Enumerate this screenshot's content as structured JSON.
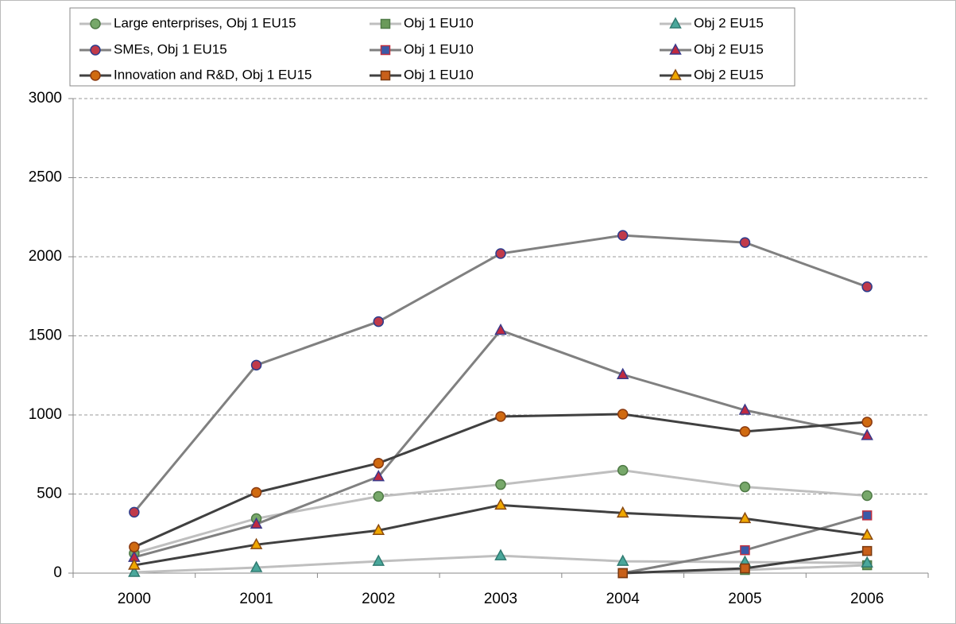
{
  "chart_data": {
    "type": "line",
    "categories": [
      "2000",
      "2001",
      "2002",
      "2003",
      "2004",
      "2005",
      "2006"
    ],
    "ylim": [
      0,
      3000
    ],
    "yticks": [
      0,
      500,
      1000,
      1500,
      2000,
      2500,
      3000
    ],
    "grid": true,
    "series": [
      {
        "name": "Large enterprises, Obj 1 EU15",
        "color": "#bfbfbf",
        "marker": "circle",
        "marker_fill": "#77a86a",
        "marker_edge": "#4f7a46",
        "values": [
          125,
          345,
          485,
          560,
          650,
          545,
          490
        ]
      },
      {
        "name": "Obj 1 EU10",
        "color": "#bfbfbf",
        "marker": "square",
        "marker_fill": "#6a9a5a",
        "marker_edge": "#4f7a46",
        "values": [
          null,
          null,
          null,
          null,
          0,
          20,
          50
        ]
      },
      {
        "name": "Obj 2 EU15",
        "color": "#bfbfbf",
        "marker": "triangle",
        "marker_fill": "#4aa79b",
        "marker_edge": "#2f7a70",
        "values": [
          5,
          35,
          75,
          110,
          75,
          70,
          65
        ]
      },
      {
        "name": "SMEs, Obj 1 EU15",
        "color": "#808080",
        "marker": "circle",
        "marker_fill": "#c03a4a",
        "marker_edge": "#2c3c8c",
        "values": [
          385,
          1315,
          1590,
          2020,
          2135,
          2090,
          1810
        ]
      },
      {
        "name": "Obj 1 EU10",
        "color": "#808080",
        "marker": "square",
        "marker_fill": "#3a5aa8",
        "marker_edge": "#c03040",
        "values": [
          null,
          null,
          null,
          null,
          0,
          145,
          365
        ]
      },
      {
        "name": "Obj 2 EU15",
        "color": "#808080",
        "marker": "triangle",
        "marker_fill": "#c02a40",
        "marker_edge": "#3a3a8a",
        "values": [
          100,
          310,
          610,
          1535,
          1255,
          1030,
          870
        ]
      },
      {
        "name": "Innovation and R&D, Obj 1 EU15",
        "color": "#404040",
        "marker": "circle",
        "marker_fill": "#d06a10",
        "marker_edge": "#8a3a10",
        "values": [
          165,
          510,
          695,
          990,
          1005,
          895,
          955
        ]
      },
      {
        "name": "Obj 1 EU10",
        "color": "#404040",
        "marker": "square",
        "marker_fill": "#c8601a",
        "marker_edge": "#7a3a10",
        "values": [
          null,
          null,
          null,
          null,
          0,
          30,
          140
        ]
      },
      {
        "name": "Obj 2 EU15",
        "color": "#404040",
        "marker": "triangle",
        "marker_fill": "#f0a800",
        "marker_edge": "#8a4a10",
        "values": [
          50,
          180,
          270,
          430,
          380,
          345,
          240
        ]
      }
    ]
  }
}
